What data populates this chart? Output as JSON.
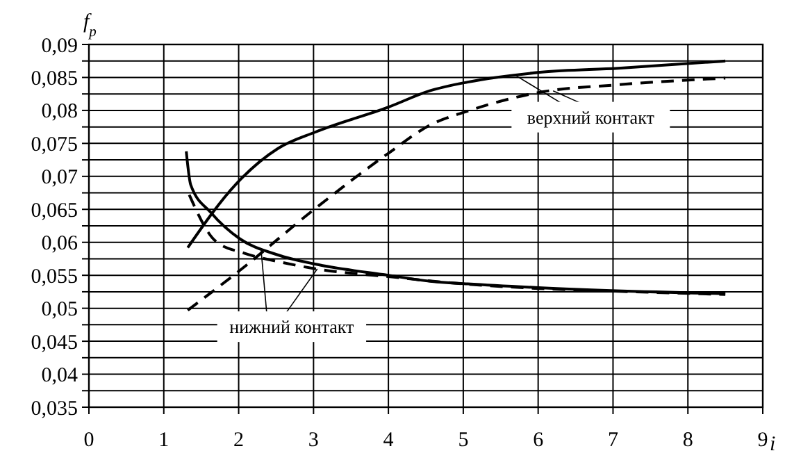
{
  "chart_data": {
    "type": "line",
    "xlabel": "i",
    "ylabel": "f$_{p}$",
    "xlim": [
      0,
      9
    ],
    "xticks": [
      0,
      1,
      2,
      3,
      4,
      5,
      6,
      7,
      8,
      9
    ],
    "ylim": [
      0.035,
      0.09
    ],
    "yticks": [
      {
        "value": 0.035,
        "label": "0,035"
      },
      {
        "value": 0.0375,
        "label": null
      },
      {
        "value": 0.04,
        "label": "0,04"
      },
      {
        "value": 0.0425,
        "label": null
      },
      {
        "value": 0.045,
        "label": "0,045"
      },
      {
        "value": 0.0475,
        "label": null
      },
      {
        "value": 0.05,
        "label": "0,05"
      },
      {
        "value": 0.0525,
        "label": null
      },
      {
        "value": 0.055,
        "label": "0,055"
      },
      {
        "value": 0.0575,
        "label": null
      },
      {
        "value": 0.06,
        "label": "0,06"
      },
      {
        "value": 0.0625,
        "label": null
      },
      {
        "value": 0.065,
        "label": "0,065"
      },
      {
        "value": 0.0675,
        "label": null
      },
      {
        "value": 0.07,
        "label": "0,07"
      },
      {
        "value": 0.0725,
        "label": null
      },
      {
        "value": 0.075,
        "label": "0,075"
      },
      {
        "value": 0.0775,
        "label": null
      },
      {
        "value": 0.08,
        "label": "0,08"
      },
      {
        "value": 0.0825,
        "label": null
      },
      {
        "value": 0.085,
        "label": "0,085"
      },
      {
        "value": 0.0875,
        "label": null
      },
      {
        "value": 0.09,
        "label": "0,09"
      }
    ],
    "grid": true,
    "series": [
      {
        "color": "#000000",
        "line_style": "solid",
        "x": [
          1.32,
          1.97,
          2.52,
          3.02,
          4.0,
          4.56,
          5.06,
          6.05,
          7.07,
          8.5
        ],
        "values": [
          0.0592,
          0.0689,
          0.0742,
          0.0767,
          0.0805,
          0.083,
          0.0843,
          0.0858,
          0.0864,
          0.0875
        ]
      },
      {
        "color": "#000000",
        "line_style": "dashed",
        "x": [
          1.32,
          2.0,
          3.02,
          4.0,
          4.56,
          5.06,
          6.05,
          7.07,
          8.5
        ],
        "values": [
          0.0497,
          0.0556,
          0.0651,
          0.0735,
          0.0778,
          0.0799,
          0.0828,
          0.0839,
          0.0849
        ]
      },
      {
        "color": "#000000",
        "line_style": "solid",
        "x": [
          1.3,
          1.36,
          1.63,
          2.02,
          2.52,
          3.02,
          4.0,
          4.56,
          5.06,
          6.05,
          8.5
        ],
        "values": [
          0.0738,
          0.0687,
          0.0645,
          0.0605,
          0.0581,
          0.0567,
          0.055,
          0.0541,
          0.0537,
          0.0531,
          0.0522
        ]
      },
      {
        "color": "#000000",
        "line_style": "dashed",
        "x": [
          1.34,
          1.69,
          2.06,
          2.52,
          3.02,
          4.0,
          5.0,
          6.0,
          7.0,
          8.5
        ],
        "values": [
          0.0672,
          0.0602,
          0.0584,
          0.0571,
          0.056,
          0.0548,
          0.0537,
          0.053,
          0.0526,
          0.0521
        ]
      }
    ],
    "annotations": [
      {
        "text": "верхний контакт",
        "x": 5.7,
        "y": 0.0853
      },
      {
        "text": "нижний контакт",
        "x": 2.3,
        "y": 0.0588
      }
    ]
  }
}
